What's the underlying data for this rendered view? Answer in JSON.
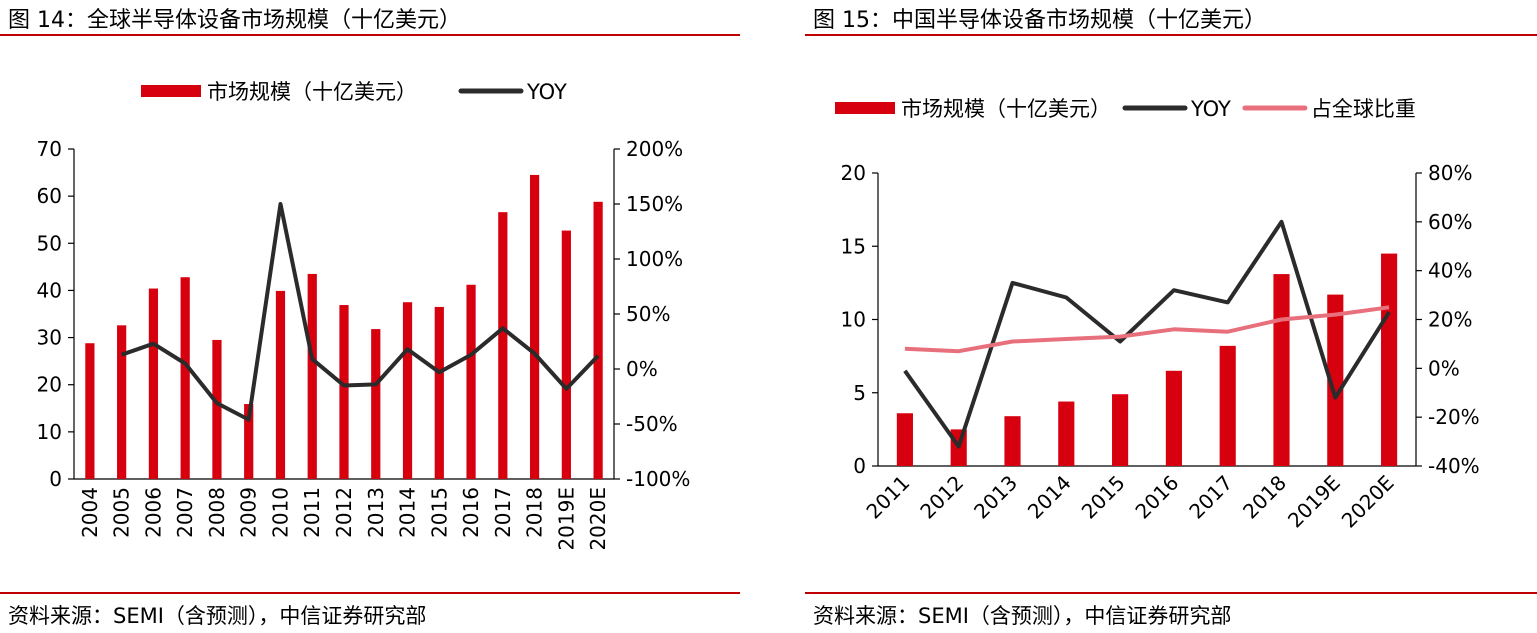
{
  "colors": {
    "bar": "#d7000f",
    "yoy": "#2b2b2b",
    "share": "#e8707c",
    "rule": "#c00000"
  },
  "left": {
    "title": "图 14：全球半导体设备市场规模（十亿美元）",
    "source": "资料来源：SEMI（含预测），中信证券研究部"
  },
  "right": {
    "title": "图 15：中国半导体设备市场规模（十亿美元）",
    "source": "资料来源：SEMI（含预测），中信证券研究部"
  },
  "chart_data": [
    {
      "type": "bar",
      "title": "全球半导体设备市场规模（十亿美元）",
      "legend": [
        "市场规模（十亿美元）",
        "YOY"
      ],
      "categories": [
        "2004",
        "2005",
        "2006",
        "2007",
        "2008",
        "2009",
        "2010",
        "2011",
        "2012",
        "2013",
        "2014",
        "2015",
        "2016",
        "2017",
        "2018",
        "2019E",
        "2020E"
      ],
      "series": [
        {
          "name": "市场规模（十亿美元）",
          "kind": "bar",
          "axis": "left",
          "values": [
            28.8,
            32.6,
            40.4,
            42.8,
            29.5,
            15.9,
            39.9,
            43.5,
            36.9,
            31.8,
            37.5,
            36.5,
            41.2,
            56.6,
            64.5,
            52.7,
            58.8
          ]
        },
        {
          "name": "YOY",
          "kind": "line",
          "axis": "right",
          "values": [
            null,
            13,
            23,
            5,
            -31,
            -46,
            150,
            9,
            -15,
            -14,
            18,
            -3,
            13,
            37,
            14,
            -18,
            12
          ]
        }
      ],
      "ylim": [
        0,
        70
      ],
      "yticks": [
        0,
        10,
        20,
        30,
        40,
        50,
        60,
        70
      ],
      "y2lim": [
        -100,
        200
      ],
      "y2ticks": [
        -100,
        -50,
        0,
        50,
        100,
        150,
        200
      ],
      "y2tick_labels": [
        "-100%",
        "-50%",
        "0%",
        "50%",
        "100%",
        "150%",
        "200%"
      ]
    },
    {
      "type": "bar",
      "title": "中国半导体设备市场规模（十亿美元）",
      "legend": [
        "市场规模（十亿美元）",
        "YOY",
        "占全球比重"
      ],
      "categories": [
        "2011",
        "2012",
        "2013",
        "2014",
        "2015",
        "2016",
        "2017",
        "2018",
        "2019E",
        "2020E"
      ],
      "series": [
        {
          "name": "市场规模（十亿美元）",
          "kind": "bar",
          "axis": "left",
          "values": [
            3.6,
            2.5,
            3.4,
            4.4,
            4.9,
            6.5,
            8.2,
            13.1,
            11.7,
            14.5
          ]
        },
        {
          "name": "YOY",
          "kind": "line",
          "axis": "right",
          "values": [
            -1,
            -32,
            35,
            29,
            11,
            32,
            27,
            60,
            -12,
            23
          ]
        },
        {
          "name": "占全球比重",
          "kind": "line",
          "axis": "right",
          "values": [
            8,
            7,
            11,
            12,
            13,
            16,
            15,
            20,
            22,
            25
          ]
        }
      ],
      "ylim": [
        0,
        20
      ],
      "yticks": [
        0,
        5,
        10,
        15,
        20
      ],
      "y2lim": [
        -40,
        80
      ],
      "y2ticks": [
        -40,
        -20,
        0,
        20,
        40,
        60,
        80
      ],
      "y2tick_labels": [
        "-40%",
        "-20%",
        "0%",
        "20%",
        "40%",
        "60%",
        "80%"
      ]
    }
  ]
}
